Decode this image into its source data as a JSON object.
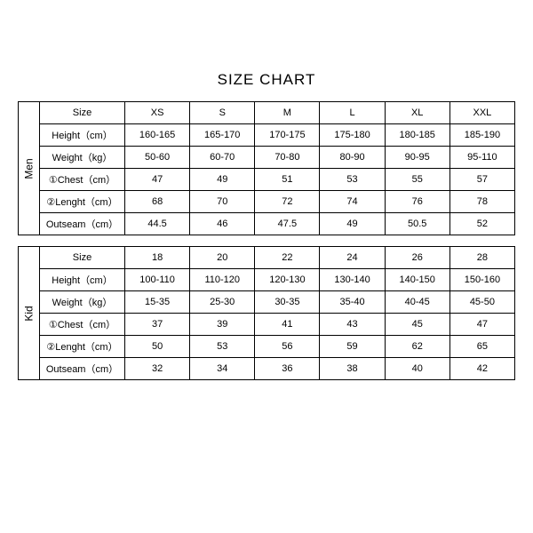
{
  "title": "SIZE CHART",
  "tables": [
    {
      "group": "Men",
      "rows": [
        {
          "label": "Size",
          "vals": [
            "XS",
            "S",
            "M",
            "L",
            "XL",
            "XXL"
          ]
        },
        {
          "label": "Height（cm）",
          "vals": [
            "160-165",
            "165-170",
            "170-175",
            "175-180",
            "180-185",
            "185-190"
          ]
        },
        {
          "label": "Weight（kg）",
          "vals": [
            "50-60",
            "60-70",
            "70-80",
            "80-90",
            "90-95",
            "95-110"
          ]
        },
        {
          "label": "①Chest（cm）",
          "vals": [
            "47",
            "49",
            "51",
            "53",
            "55",
            "57"
          ]
        },
        {
          "label": "②Lenght（cm）",
          "vals": [
            "68",
            "70",
            "72",
            "74",
            "76",
            "78"
          ]
        },
        {
          "label": "Outseam（cm）",
          "vals": [
            "44.5",
            "46",
            "47.5",
            "49",
            "50.5",
            "52"
          ]
        }
      ]
    },
    {
      "group": "Kid",
      "rows": [
        {
          "label": "Size",
          "vals": [
            "18",
            "20",
            "22",
            "24",
            "26",
            "28"
          ]
        },
        {
          "label": "Height（cm）",
          "vals": [
            "100-110",
            "110-120",
            "120-130",
            "130-140",
            "140-150",
            "150-160"
          ]
        },
        {
          "label": "Weight（kg）",
          "vals": [
            "15-35",
            "25-30",
            "30-35",
            "35-40",
            "40-45",
            "45-50"
          ]
        },
        {
          "label": "①Chest（cm）",
          "vals": [
            "37",
            "39",
            "41",
            "43",
            "45",
            "47"
          ]
        },
        {
          "label": "②Lenght（cm）",
          "vals": [
            "50",
            "53",
            "56",
            "59",
            "62",
            "65"
          ]
        },
        {
          "label": "Outseam（cm）",
          "vals": [
            "32",
            "34",
            "36",
            "38",
            "40",
            "42"
          ]
        }
      ]
    }
  ]
}
